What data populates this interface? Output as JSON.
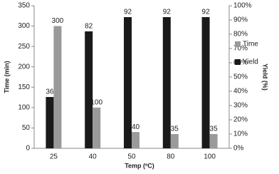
{
  "chart_data": {
    "type": "bar",
    "categories": [
      "25",
      "40",
      "50",
      "80",
      "100"
    ],
    "x_label": "Temp (ºC)",
    "y_label": "Time (min)",
    "y2_label": "Yield (%)",
    "series": [
      {
        "name": "Yield",
        "color": "#1a1a1a",
        "axis": "y2",
        "values": [
          36,
          82,
          92,
          92,
          92
        ]
      },
      {
        "name": "Time",
        "color": "#9a9a9a",
        "values": [
          300,
          100,
          40,
          35,
          35
        ]
      }
    ],
    "ylim": [
      0,
      350
    ],
    "yticks": [
      0,
      50,
      100,
      150,
      200,
      250,
      300,
      350
    ],
    "y2lim": [
      0,
      100
    ],
    "y2ticks": [
      {
        "value": 0,
        "label": "0%"
      },
      {
        "value": 10,
        "label": "10%"
      },
      {
        "value": 20,
        "label": "20%"
      },
      {
        "value": 30,
        "label": "30%"
      },
      {
        "value": 40,
        "label": "40%"
      },
      {
        "value": 50,
        "label": "50%"
      },
      {
        "value": 60,
        "label": "60%"
      },
      {
        "value": 70,
        "label": "70%"
      },
      {
        "value": 80,
        "label": "80%"
      },
      {
        "value": 90,
        "label": "90%"
      },
      {
        "value": 100,
        "label": "100%"
      }
    ],
    "legend": "right"
  }
}
